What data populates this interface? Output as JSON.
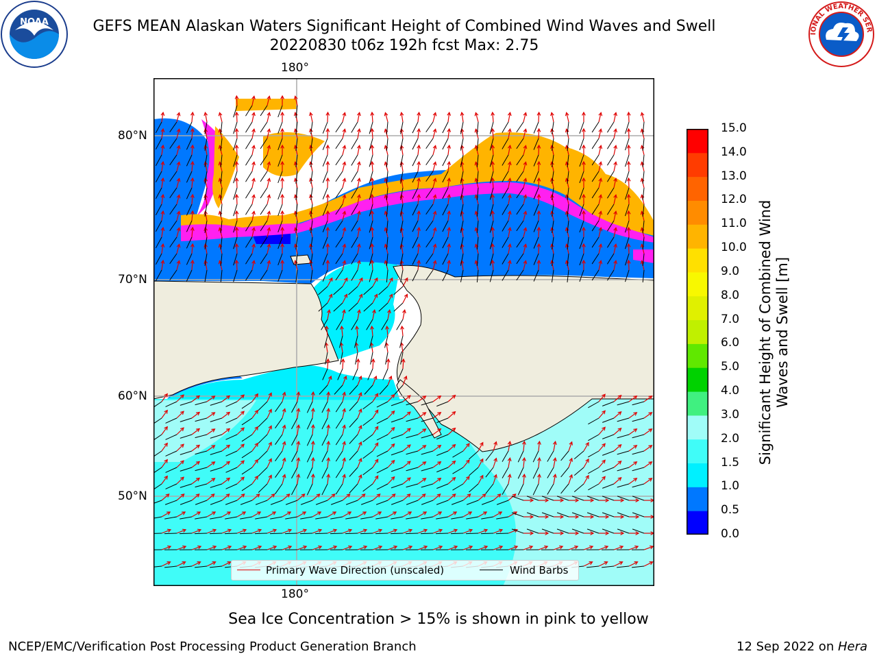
{
  "title": {
    "line1": "GEFS MEAN Alaskan Waters Significant Height of Combined Wind Waves and Swell",
    "line2": "20220830 t06z 192h fcst   Max: 2.75"
  },
  "logos": {
    "left": {
      "icon": "noaa-logo",
      "text": "NOAA"
    },
    "right": {
      "icon": "nws-logo",
      "text": "NATIONAL WEATHER SERVICE"
    }
  },
  "map": {
    "longitude_labels": {
      "top": "180°",
      "bottom": "180°"
    },
    "latitude_labels": [
      "80°N",
      "70°N",
      "60°N",
      "50°N"
    ],
    "land_color": "#efedde",
    "legend": {
      "wave_label": "Primary Wave Direction (unscaled)",
      "wind_label": "Wind Barbs",
      "wave_color": "#e00000",
      "wind_color": "#000000"
    }
  },
  "colorbar": {
    "label": "Significant Height of Combined Wind Waves and Swell [m]",
    "ticks": [
      "15.0",
      "14.0",
      "13.0",
      "12.0",
      "11.0",
      "10.0",
      "9.0",
      "8.0",
      "7.0",
      "6.0",
      "5.0",
      "4.0",
      "3.0",
      "2.0",
      "1.5",
      "1.0",
      "0.5",
      "0.0"
    ],
    "bins": [
      {
        "range": "0.0-0.5",
        "color": "#0000ff"
      },
      {
        "range": "0.5-1.0",
        "color": "#0078ff"
      },
      {
        "range": "1.0-1.5",
        "color": "#00f0ff"
      },
      {
        "range": "1.5-2.0",
        "color": "#40fcf8"
      },
      {
        "range": "2.0-3.0",
        "color": "#a0fcf8"
      },
      {
        "range": "3.0-4.0",
        "color": "#40f080"
      },
      {
        "range": "4.0-5.0",
        "color": "#00d200"
      },
      {
        "range": "5.0-6.0",
        "color": "#60e800"
      },
      {
        "range": "6.0-7.0",
        "color": "#c0f000"
      },
      {
        "range": "7.0-8.0",
        "color": "#e0f000"
      },
      {
        "range": "8.0-9.0",
        "color": "#f8f800"
      },
      {
        "range": "9.0-10.0",
        "color": "#ffe000"
      },
      {
        "range": "10.0-11.0",
        "color": "#ffb400"
      },
      {
        "range": "11.0-12.0",
        "color": "#ff8c00"
      },
      {
        "range": "12.0-13.0",
        "color": "#ff6400"
      },
      {
        "range": "13.0-14.0",
        "color": "#ff3c00"
      },
      {
        "range": "14.0-15.0",
        "color": "#ff0000"
      }
    ]
  },
  "footnote": "Sea Ice Concentration > 15% is shown in pink to yellow",
  "credit": "NCEP/EMC/Verification Post Processing Product Generation Branch",
  "datestamp": {
    "date": "12 Sep 2022 on ",
    "host": "Hera"
  }
}
